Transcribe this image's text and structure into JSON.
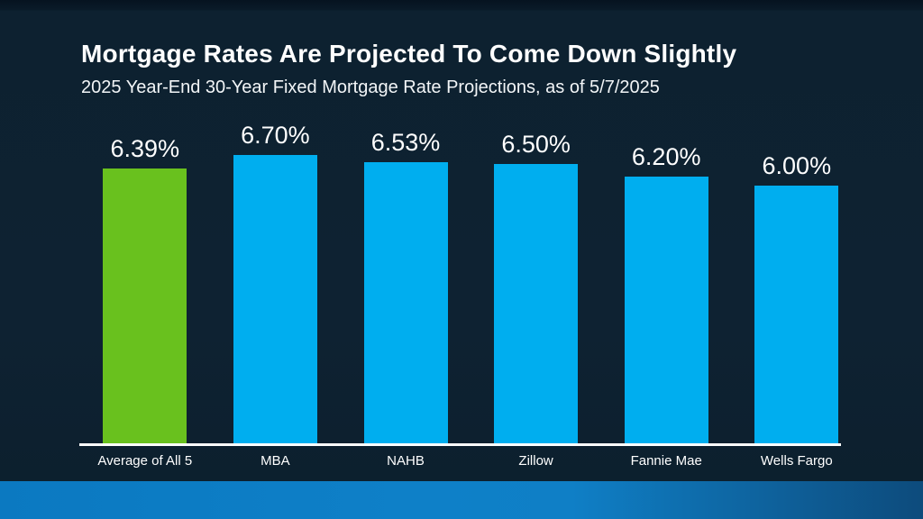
{
  "slide": {
    "title": "Mortgage Rates Are Projected To Come Down Slightly",
    "subtitle": "2025 Year-End 30-Year Fixed Mortgage Rate Projections, as of 5/7/2025"
  },
  "chart_data": {
    "type": "bar",
    "title": "Mortgage Rates Are Projected To Come Down Slightly",
    "subtitle": "2025 Year-End 30-Year Fixed Mortgage Rate Projections, as of 5/7/2025",
    "categories": [
      "Average of All 5",
      "MBA",
      "NAHB",
      "Zillow",
      "Fannie Mae",
      "Wells Fargo"
    ],
    "values": [
      6.39,
      6.7,
      6.53,
      6.5,
      6.2,
      6.0
    ],
    "value_labels": [
      "6.39%",
      "6.70%",
      "6.53%",
      "6.50%",
      "6.20%",
      "6.00%"
    ],
    "ylim": [
      0,
      7
    ],
    "grid": false,
    "legend": null,
    "value_labels_position": "above-bars",
    "highlight_index": 0,
    "highlight_color": "#69C11E",
    "bar_color": "#00AEEF"
  },
  "colors": {
    "background": "#0D2130",
    "top_band": "#061320",
    "axis_line": "#FFFFFF",
    "text": "#FFFFFF",
    "footer_left": "#0B79C1",
    "footer_mid": "#0E80C8",
    "footer_right": "#0D4B7C"
  }
}
